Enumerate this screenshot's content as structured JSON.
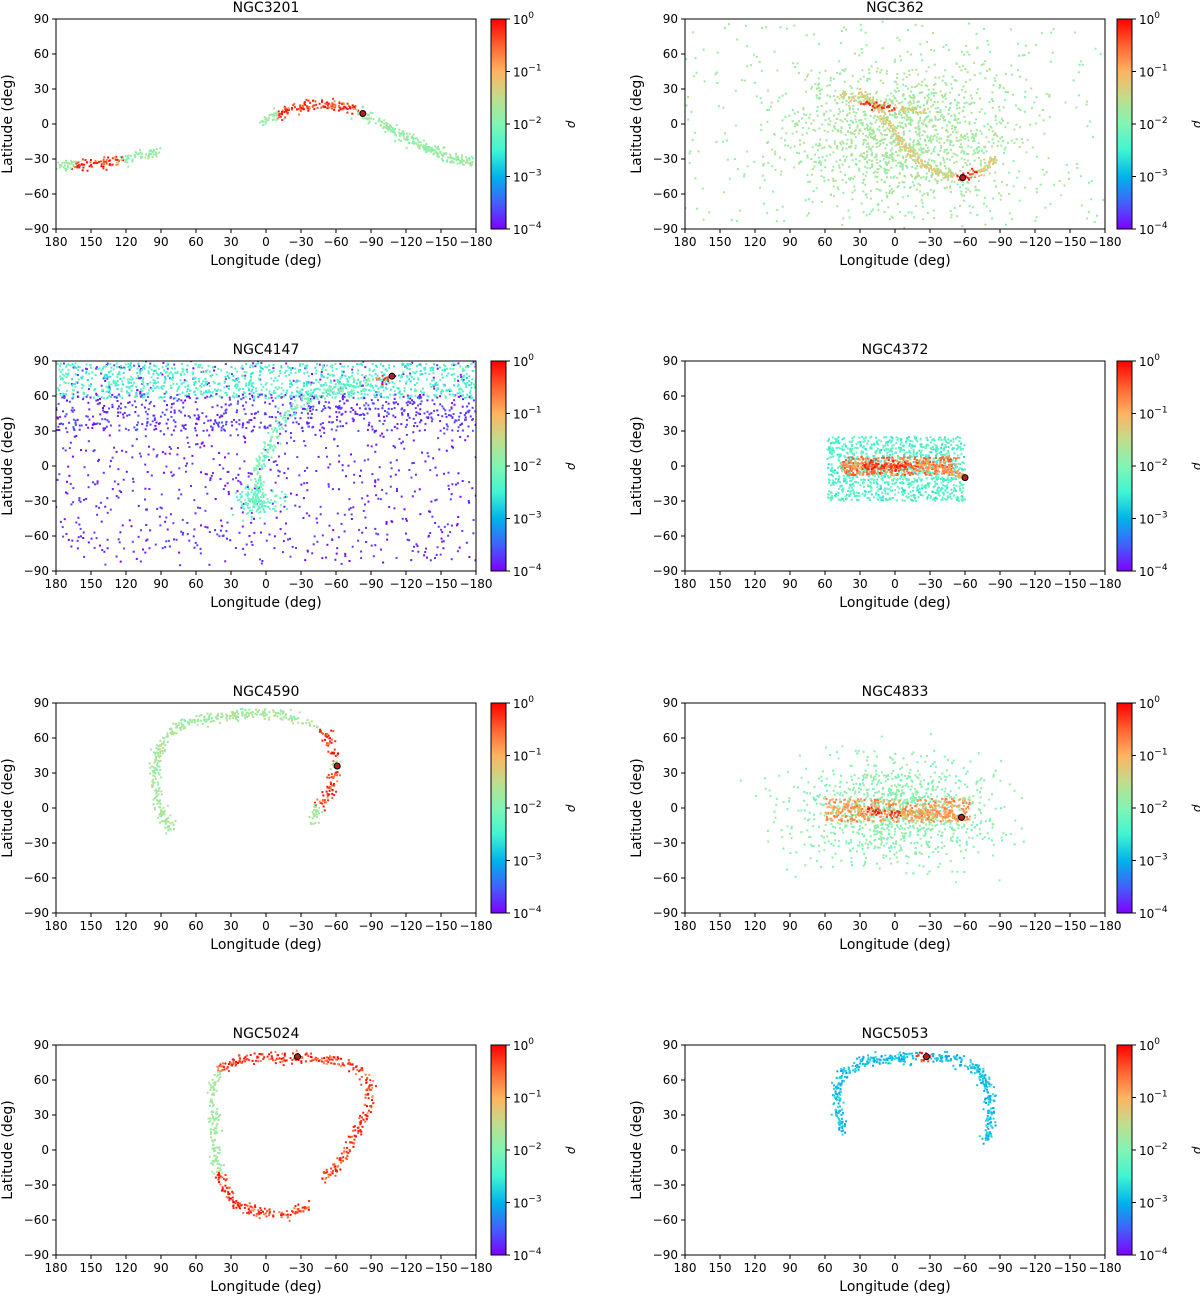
{
  "figure": {
    "xlabel": "Longitude (deg)",
    "ylabel": "Latitude (deg)",
    "colorbar_label": "ρ",
    "xticks": [
      180,
      150,
      120,
      90,
      60,
      30,
      0,
      -30,
      -60,
      -90,
      -120,
      -150,
      -180
    ],
    "yticks": [
      90,
      60,
      30,
      0,
      -30,
      -60,
      -90
    ],
    "colorbar_ticks": [
      {
        "base": "10",
        "exp": "0"
      },
      {
        "base": "10",
        "exp": "−1"
      },
      {
        "base": "10",
        "exp": "−2"
      },
      {
        "base": "10",
        "exp": "−3"
      },
      {
        "base": "10",
        "exp": "−4"
      }
    ],
    "colormap": [
      "#8000ff",
      "#4062fa",
      "#01b3eb",
      "#41f4d2",
      "#81f5b3",
      "#c0dd8c",
      "#ffb360",
      "#ff6230",
      "#ff0000"
    ],
    "marker_color": "#b22222"
  },
  "chart_data": [
    {
      "type": "scatter",
      "title": "NGC3201",
      "xlim": [
        180,
        -180
      ],
      "ylim": [
        -90,
        90
      ],
      "colorbar": {
        "scale": "log",
        "range": [
          0.0001,
          1
        ]
      },
      "progenitor": {
        "lon": -83,
        "lat": 9
      },
      "streams": [
        {
          "kind": "path",
          "points": [
            [
              4,
              0
            ],
            [
              -8,
              6
            ],
            [
              -20,
              11
            ],
            [
              -35,
              16
            ],
            [
              -50,
              17
            ],
            [
              -65,
              15
            ],
            [
              -80,
              10
            ],
            [
              -95,
              3
            ],
            [
              -110,
              -5
            ],
            [
              -125,
              -14
            ],
            [
              -140,
              -22
            ],
            [
              -155,
              -28
            ],
            [
              -170,
              -32
            ],
            [
              -180,
              -34
            ]
          ],
          "width": 4,
          "count": 420,
          "peak": [
            -10,
            -75
          ],
          "floor": 0.012
        },
        {
          "kind": "path",
          "points": [
            [
              180,
              -36
            ],
            [
              165,
              -36
            ],
            [
              150,
              -35
            ],
            [
              135,
              -33
            ],
            [
              120,
              -30
            ],
            [
              105,
              -27
            ],
            [
              92,
              -24
            ]
          ],
          "width": 4,
          "count": 170,
          "peak": [
            165,
            125
          ],
          "floor": 0.012
        }
      ]
    },
    {
      "type": "scatter",
      "title": "NGC362",
      "xlim": [
        180,
        -180
      ],
      "ylim": [
        -90,
        90
      ],
      "colorbar": {
        "scale": "log",
        "range": [
          0.0001,
          1
        ]
      },
      "progenitor": {
        "lon": -58,
        "lat": -46
      },
      "streams": [
        {
          "kind": "blob",
          "center": [
            -5,
            -10
          ],
          "spread": [
            48,
            32
          ],
          "count": 1400,
          "value": 0.02
        },
        {
          "kind": "uniform",
          "count": 320,
          "value": 0.015
        },
        {
          "kind": "path",
          "points": [
            [
              30,
              28
            ],
            [
              15,
              15
            ],
            [
              5,
              0
            ],
            [
              -5,
              -15
            ],
            [
              -20,
              -32
            ],
            [
              -40,
              -43
            ],
            [
              -58,
              -46
            ],
            [
              -75,
              -40
            ],
            [
              -85,
              -30
            ]
          ],
          "width": 3,
          "count": 280,
          "peak": [
            -50,
            -70
          ],
          "floor": 0.04
        },
        {
          "kind": "path",
          "points": [
            [
              45,
              25
            ],
            [
              25,
              18
            ],
            [
              5,
              14
            ],
            [
              -15,
              12
            ],
            [
              -30,
              10
            ]
          ],
          "width": 3,
          "count": 90,
          "peak": [
            30,
            0
          ],
          "floor": 0.04
        }
      ]
    },
    {
      "type": "scatter",
      "title": "NGC4147",
      "xlim": [
        180,
        -180
      ],
      "ylim": [
        -90,
        90
      ],
      "colorbar": {
        "scale": "log",
        "range": [
          0.0001,
          1
        ]
      },
      "progenitor": {
        "lon": -108,
        "lat": 77
      },
      "streams": [
        {
          "kind": "uniform",
          "count": 900,
          "value": 0.00015
        },
        {
          "kind": "band",
          "latRange": [
            58,
            88
          ],
          "count": 1000,
          "value": 0.004
        },
        {
          "kind": "band",
          "latRange": [
            30,
            62
          ],
          "count": 500,
          "value": 0.0002
        },
        {
          "kind": "path",
          "points": [
            [
              5,
              -40
            ],
            [
              10,
              -25
            ],
            [
              5,
              0
            ],
            [
              -5,
              20
            ],
            [
              -15,
              40
            ],
            [
              -30,
              55
            ],
            [
              -55,
              65
            ],
            [
              -80,
              70
            ],
            [
              -105,
              75
            ]
          ],
          "width": 5,
          "count": 260,
          "peak": [
            -95,
            -120
          ],
          "floor": 0.006
        },
        {
          "kind": "blob",
          "center": [
            5,
            -30
          ],
          "spread": [
            10,
            6
          ],
          "count": 120,
          "value": 0.006
        }
      ]
    },
    {
      "type": "scatter",
      "title": "NGC4372",
      "xlim": [
        180,
        -180
      ],
      "ylim": [
        -90,
        90
      ],
      "colorbar": {
        "scale": "log",
        "range": [
          0.0001,
          1
        ]
      },
      "progenitor": {
        "lon": -60,
        "lat": -10
      },
      "streams": [
        {
          "kind": "box",
          "lonRange": [
            -60,
            58
          ],
          "latRange": [
            -30,
            25
          ],
          "count": 1100,
          "value": 0.006
        },
        {
          "kind": "box",
          "lonRange": [
            -55,
            45
          ],
          "latRange": [
            -8,
            8
          ],
          "count": 350,
          "value": 0.35
        },
        {
          "kind": "path",
          "points": [
            [
              45,
              0
            ],
            [
              20,
              0
            ],
            [
              -20,
              0
            ],
            [
              -45,
              -2
            ],
            [
              -60,
              -10
            ]
          ],
          "width": 3,
          "count": 200,
          "peak": [
            30,
            -20
          ],
          "floor": 0.1
        }
      ]
    },
    {
      "type": "scatter",
      "title": "NGC4590",
      "xlim": [
        180,
        -180
      ],
      "ylim": [
        -90,
        90
      ],
      "colorbar": {
        "scale": "log",
        "range": [
          0.0001,
          1
        ]
      },
      "progenitor": {
        "lon": -61,
        "lat": 36
      },
      "streams": [
        {
          "kind": "path",
          "points": [
            [
              80,
              -20
            ],
            [
              90,
              -5
            ],
            [
              95,
              15
            ],
            [
              95,
              35
            ],
            [
              90,
              55
            ],
            [
              75,
              70
            ],
            [
              50,
              77
            ],
            [
              20,
              80
            ],
            [
              -10,
              80
            ],
            [
              -35,
              75
            ],
            [
              -50,
              65
            ],
            [
              -58,
              50
            ],
            [
              -61,
              36
            ],
            [
              -55,
              15
            ],
            [
              -45,
              0
            ],
            [
              -40,
              -12
            ]
          ],
          "width": 4,
          "count": 520,
          "peak": [
            -45,
            -60
          ],
          "floor": 0.015
        }
      ]
    },
    {
      "type": "scatter",
      "title": "NGC4833",
      "xlim": [
        180,
        -180
      ],
      "ylim": [
        -90,
        90
      ],
      "colorbar": {
        "scale": "log",
        "range": [
          0.0001,
          1
        ]
      },
      "progenitor": {
        "lon": -57,
        "lat": -8
      },
      "streams": [
        {
          "kind": "blob",
          "center": [
            0,
            -3
          ],
          "spread": [
            40,
            22
          ],
          "count": 1100,
          "value": 0.012
        },
        {
          "kind": "box",
          "lonRange": [
            -65,
            60
          ],
          "latRange": [
            -12,
            8
          ],
          "count": 400,
          "value": 0.2
        },
        {
          "kind": "path",
          "points": [
            [
              55,
              0
            ],
            [
              25,
              -2
            ],
            [
              0,
              -5
            ],
            [
              -25,
              -4
            ],
            [
              -45,
              -6
            ],
            [
              -60,
              -10
            ]
          ],
          "width": 3,
          "count": 150,
          "peak": [
            25,
            -5
          ],
          "floor": 0.1
        }
      ]
    },
    {
      "type": "scatter",
      "title": "NGC5024",
      "xlim": [
        180,
        -180
      ],
      "ylim": [
        -90,
        90
      ],
      "colorbar": {
        "scale": "log",
        "range": [
          0.0001,
          1
        ]
      },
      "progenitor": {
        "lon": -27,
        "lat": 80
      },
      "streams": [
        {
          "kind": "path",
          "points": [
            [
              -36,
              -50
            ],
            [
              -20,
              -55
            ],
            [
              0,
              -55
            ],
            [
              20,
              -50
            ],
            [
              35,
              -35
            ],
            [
              42,
              -15
            ],
            [
              45,
              10
            ],
            [
              45,
              35
            ],
            [
              45,
              55
            ],
            [
              40,
              70
            ],
            [
              20,
              78
            ],
            [
              -10,
              80
            ],
            [
              -40,
              79
            ],
            [
              -70,
              75
            ],
            [
              -85,
              65
            ],
            [
              -90,
              50
            ],
            [
              -88,
              35
            ],
            [
              -80,
              20
            ],
            [
              -70,
              0
            ],
            [
              -60,
              -15
            ],
            [
              -50,
              -25
            ]
          ],
          "width": 4,
          "count": 620,
          "peak": [
            40,
            -95
          ],
          "floor": 0.015
        }
      ]
    },
    {
      "type": "scatter",
      "title": "NGC5053",
      "xlim": [
        180,
        -180
      ],
      "ylim": [
        -90,
        90
      ],
      "colorbar": {
        "scale": "log",
        "range": [
          0.0001,
          1
        ]
      },
      "progenitor": {
        "lon": -27,
        "lat": 80
      },
      "streams": [
        {
          "kind": "path",
          "points": [
            [
              45,
              15
            ],
            [
              48,
              35
            ],
            [
              50,
              55
            ],
            [
              40,
              70
            ],
            [
              20,
              77
            ],
            [
              -5,
              79
            ],
            [
              -30,
              80
            ],
            [
              -55,
              78
            ],
            [
              -70,
              70
            ],
            [
              -80,
              55
            ],
            [
              -82,
              35
            ],
            [
              -80,
              15
            ],
            [
              -78,
              5
            ]
          ],
          "width": 4,
          "count": 480,
          "peak": [
            -20,
            -30
          ],
          "floor": 0.001
        }
      ]
    }
  ]
}
